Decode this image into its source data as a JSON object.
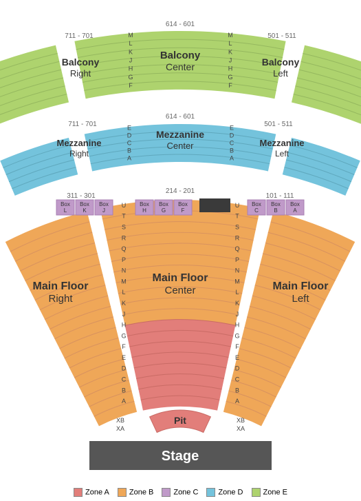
{
  "colors": {
    "zoneA": "#e27e7a",
    "zoneB": "#efa758",
    "zoneC": "#c09ac9",
    "zoneD": "#74c3dc",
    "zoneE": "#aed36e",
    "stage": "#565656",
    "dark": "#3a3a3a",
    "rowStroke": "#d8925f",
    "rowStrokeA": "#c96b65",
    "rowStrokeD": "#5fa8bd",
    "rowStrokeE": "#95b85f"
  },
  "legend": [
    {
      "label": "Zone A",
      "colorKey": "zoneA"
    },
    {
      "label": "Zone B",
      "colorKey": "zoneB"
    },
    {
      "label": "Zone C",
      "colorKey": "zoneC"
    },
    {
      "label": "Zone D",
      "colorKey": "zoneD"
    },
    {
      "label": "Zone E",
      "colorKey": "zoneE"
    }
  ],
  "stage": {
    "label": "Stage"
  },
  "pit": {
    "label": "Pit",
    "rows": [
      "XA",
      "XB"
    ]
  },
  "mainFloor": {
    "center": {
      "title": "Main Floor",
      "sub": "Center",
      "seatRange": "214 - 201"
    },
    "right": {
      "title": "Main Floor",
      "sub": "Right",
      "seatRange": "311 - 301"
    },
    "left": {
      "title": "Main Floor",
      "sub": "Left",
      "seatRange": "101 - 111"
    },
    "rows": [
      "A",
      "B",
      "C",
      "D",
      "E",
      "F",
      "G",
      "H",
      "J",
      "K",
      "L",
      "M",
      "N",
      "P",
      "Q",
      "R",
      "S",
      "T",
      "U"
    ]
  },
  "boxes": {
    "right": [
      "Box L",
      "Box K",
      "Box J"
    ],
    "center": [
      "Box H",
      "Box G",
      "Box F"
    ],
    "left": [
      "Box C",
      "Box B",
      "Box A"
    ]
  },
  "mezzanine": {
    "center": {
      "title": "Mezzanine",
      "sub": "Center",
      "seatRange": "614 - 601"
    },
    "right": {
      "title": "Mezzanine",
      "sub": "Right",
      "seatRange": "711 - 701"
    },
    "left": {
      "title": "Mezzanine",
      "sub": "Left",
      "seatRange": "501 - 511"
    },
    "rows": [
      "A",
      "B",
      "C",
      "D",
      "E"
    ]
  },
  "balcony": {
    "center": {
      "title": "Balcony",
      "sub": "Center",
      "seatRange": "614 - 601"
    },
    "right": {
      "title": "Balcony",
      "sub": "Right",
      "seatRange": "711 - 701"
    },
    "left": {
      "title": "Balcony",
      "sub": "Left",
      "seatRange": "501 - 511"
    },
    "rows": [
      "F",
      "G",
      "H",
      "J",
      "K",
      "L",
      "M"
    ]
  }
}
